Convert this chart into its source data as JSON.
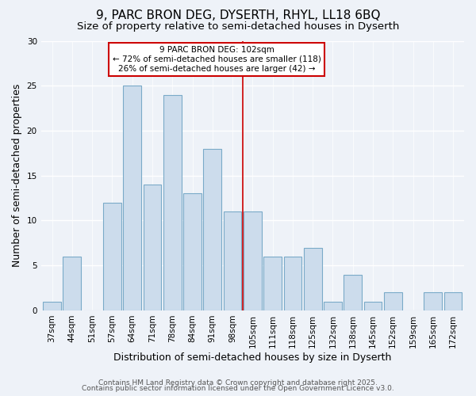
{
  "title": "9, PARC BRON DEG, DYSERTH, RHYL, LL18 6BQ",
  "subtitle": "Size of property relative to semi-detached houses in Dyserth",
  "xlabel": "Distribution of semi-detached houses by size in Dyserth",
  "ylabel": "Number of semi-detached properties",
  "bar_labels": [
    "37sqm",
    "44sqm",
    "51sqm",
    "57sqm",
    "64sqm",
    "71sqm",
    "78sqm",
    "84sqm",
    "91sqm",
    "98sqm",
    "105sqm",
    "111sqm",
    "118sqm",
    "125sqm",
    "132sqm",
    "138sqm",
    "145sqm",
    "152sqm",
    "159sqm",
    "165sqm",
    "172sqm"
  ],
  "bar_values": [
    1,
    6,
    0,
    12,
    25,
    14,
    24,
    13,
    18,
    11,
    11,
    6,
    6,
    7,
    1,
    4,
    1,
    2,
    0,
    2,
    2
  ],
  "bar_color": "#ccdcec",
  "bar_edge_color": "#7aaac8",
  "vline_x": 9.5,
  "vline_color": "#cc0000",
  "ylim": [
    0,
    30
  ],
  "yticks": [
    0,
    5,
    10,
    15,
    20,
    25,
    30
  ],
  "annotation_title": "9 PARC BRON DEG: 102sqm",
  "annotation_line1": "← 72% of semi-detached houses are smaller (118)",
  "annotation_line2": "26% of semi-detached houses are larger (42) →",
  "footer1": "Contains HM Land Registry data © Crown copyright and database right 2025.",
  "footer2": "Contains public sector information licensed under the Open Government Licence v3.0.",
  "background_color": "#eef2f8",
  "grid_color": "#ffffff",
  "title_fontsize": 11,
  "subtitle_fontsize": 9.5,
  "axis_label_fontsize": 9,
  "tick_fontsize": 7.5,
  "footer_fontsize": 6.5
}
